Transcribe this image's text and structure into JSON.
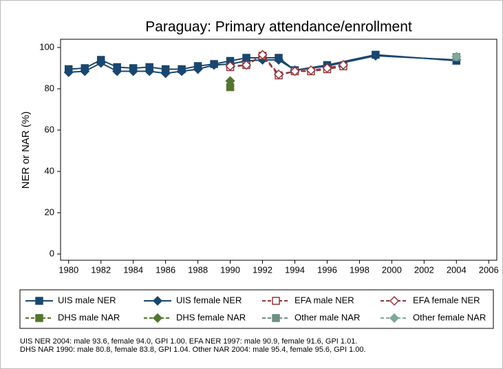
{
  "chart_data": {
    "type": "line",
    "title": "Paraguay: Primary attendance/enrollment",
    "y_label": "NER or NAR (%)",
    "xlim": [
      1979.5,
      2006.5
    ],
    "xticks": [
      1980,
      1982,
      1984,
      1986,
      1988,
      1990,
      1992,
      1994,
      1996,
      1998,
      2000,
      2002,
      2004,
      2006
    ],
    "ylim": [
      -3,
      104
    ],
    "yticks": [
      0,
      20,
      40,
      60,
      80,
      100
    ],
    "series": [
      {
        "name": "UIS male NER",
        "color": "#1a476f",
        "marker": "square",
        "filled": true,
        "dash": false,
        "x": [
          1980,
          1981,
          1982,
          1983,
          1984,
          1985,
          1986,
          1987,
          1988,
          1989,
          1990,
          1991,
          1992,
          1993,
          1994,
          1996,
          1999,
          2004
        ],
        "values": [
          89.5,
          90,
          94,
          90.5,
          90,
          90.5,
          89.5,
          89.5,
          91,
          92,
          93.5,
          95,
          95,
          95,
          89,
          91.5,
          96.5,
          93.6
        ]
      },
      {
        "name": "UIS female NER",
        "color": "#1a476f",
        "marker": "diamond",
        "filled": true,
        "dash": false,
        "x": [
          1980,
          1981,
          1982,
          1983,
          1984,
          1985,
          1986,
          1987,
          1988,
          1989,
          1990,
          1991,
          1992,
          1993,
          1994,
          1996,
          1999,
          2004
        ],
        "values": [
          88,
          88.5,
          92.5,
          88.5,
          88.5,
          88.5,
          87.5,
          88.5,
          89.5,
          91.5,
          92,
          93.5,
          94,
          94,
          89,
          91,
          96,
          94.0
        ]
      },
      {
        "name": "EFA male NER",
        "color": "#90353b",
        "marker": "square",
        "filled": false,
        "dash": true,
        "x": [
          1990,
          1991,
          1992,
          1993,
          1994,
          1995,
          1996,
          1997
        ],
        "values": [
          90.5,
          91.5,
          96,
          86.5,
          88.5,
          88.5,
          89.5,
          90.9
        ]
      },
      {
        "name": "EFA female NER",
        "color": "#90353b",
        "marker": "diamond",
        "filled": false,
        "dash": true,
        "x": [
          1990,
          1991,
          1992,
          1993,
          1994,
          1995,
          1996,
          1997
        ],
        "values": [
          91,
          91.5,
          96.5,
          87,
          88.5,
          89,
          90,
          91.6
        ]
      },
      {
        "name": "DHS male NAR",
        "color": "#55752f",
        "marker": "square",
        "filled": true,
        "dash": true,
        "x": [
          1990
        ],
        "values": [
          80.8
        ]
      },
      {
        "name": "DHS female NAR",
        "color": "#55752f",
        "marker": "diamond",
        "filled": true,
        "dash": true,
        "x": [
          1990
        ],
        "values": [
          83.8
        ]
      },
      {
        "name": "Other male NAR",
        "color": "#6e8e84",
        "marker": "square",
        "filled": true,
        "dash": true,
        "x": [
          2004
        ],
        "values": [
          95.4
        ]
      },
      {
        "name": "Other female NAR",
        "color": "#7fa89a",
        "marker": "diamond",
        "filled": true,
        "dash": true,
        "x": [
          2004
        ],
        "values": [
          95.6
        ]
      }
    ],
    "notes": [
      "UIS NER 2004: male 93.6, female 94.0, GPI 1.00. EFA NER 1997: male 90.9, female 91.6, GPI 1.01.",
      "DHS NAR 1990: male 80.8, female 83.8, GPI 1.04. Other NAR 2004: male 95.4, female 95.6, GPI 1.00."
    ]
  }
}
